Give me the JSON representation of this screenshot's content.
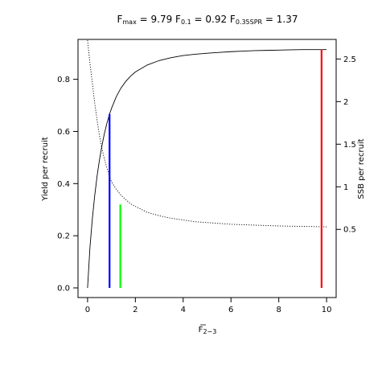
{
  "chart_data": {
    "type": "line",
    "title": {
      "fmax_label": "F",
      "fmax_sub": "max",
      "fmax_value": "9.79",
      "f01_label": "F",
      "f01_sub": "0.1",
      "f01_value": "0.92",
      "fspr_label": "F",
      "fspr_sub": "0.35SPR",
      "fspr_value": "1.37"
    },
    "xlabel": "F",
    "xlabel_sub": "2−3",
    "ylabel": "Yield per recruit",
    "ylabel_right": "SSB per recruit",
    "xlim": [
      -0.4,
      10.4
    ],
    "ylim": [
      -0.037,
      0.953
    ],
    "ylim_right": [
      -0.3,
      2.73
    ],
    "x_ticks": [
      0,
      2,
      4,
      6,
      8,
      10
    ],
    "x_tick_labels": [
      "0",
      "2",
      "4",
      "6",
      "8",
      "10"
    ],
    "y_ticks": [
      0.0,
      0.2,
      0.4,
      0.6,
      0.8
    ],
    "y_tick_labels": [
      "0.0",
      "0.2",
      "0.4",
      "0.6",
      "0.8"
    ],
    "y_right_ticks": [
      0.5,
      1,
      1.5,
      2,
      2.5
    ],
    "y_right_tick_labels": [
      "0.5",
      "1",
      "1.5",
      "2",
      "2.5"
    ],
    "series": [
      {
        "axis": "left",
        "style": "solid",
        "color": "#000000",
        "x": [
          0,
          0.1,
          0.2,
          0.3,
          0.4,
          0.5,
          0.6,
          0.7,
          0.8,
          0.92,
          1.0,
          1.2,
          1.4,
          1.6,
          1.8,
          2.0,
          2.5,
          3.0,
          3.5,
          4.0,
          4.5,
          5.0,
          5.5,
          6.0,
          6.5,
          7.0,
          7.5,
          8.0,
          8.5,
          9.0,
          9.5,
          10.0
        ],
        "y": [
          0.0,
          0.155,
          0.265,
          0.355,
          0.43,
          0.492,
          0.545,
          0.59,
          0.628,
          0.667,
          0.688,
          0.733,
          0.767,
          0.792,
          0.812,
          0.828,
          0.855,
          0.872,
          0.883,
          0.891,
          0.896,
          0.9,
          0.903,
          0.906,
          0.908,
          0.91,
          0.911,
          0.912,
          0.913,
          0.914,
          0.914,
          0.914
        ]
      },
      {
        "axis": "right",
        "style": "dotted",
        "color": "#000000",
        "x": [
          0,
          0.1,
          0.2,
          0.3,
          0.4,
          0.5,
          0.6,
          0.7,
          0.8,
          0.92,
          1.0,
          1.2,
          1.4,
          1.6,
          1.8,
          2.0,
          2.5,
          3.0,
          3.5,
          4.0,
          4.5,
          5.0,
          6.0,
          7.0,
          8.0,
          9.0,
          10.0
        ],
        "y": [
          2.72,
          2.45,
          2.22,
          1.98,
          1.78,
          1.6,
          1.45,
          1.33,
          1.23,
          1.12,
          1.06,
          0.97,
          0.9,
          0.85,
          0.8,
          0.77,
          0.7,
          0.66,
          0.63,
          0.61,
          0.59,
          0.58,
          0.56,
          0.55,
          0.54,
          0.535,
          0.53
        ]
      }
    ],
    "reference_lines": [
      {
        "name": "F0.1",
        "x": 0.92,
        "y_top": 0.667,
        "color": "#0000ff"
      },
      {
        "name": "F0.35SPR",
        "x": 1.37,
        "y_top": 0.32,
        "color": "#00ff00"
      },
      {
        "name": "Fmax",
        "x": 9.79,
        "y_top": 0.914,
        "color": "#ff0000"
      }
    ],
    "grid": false,
    "legend": "none"
  }
}
